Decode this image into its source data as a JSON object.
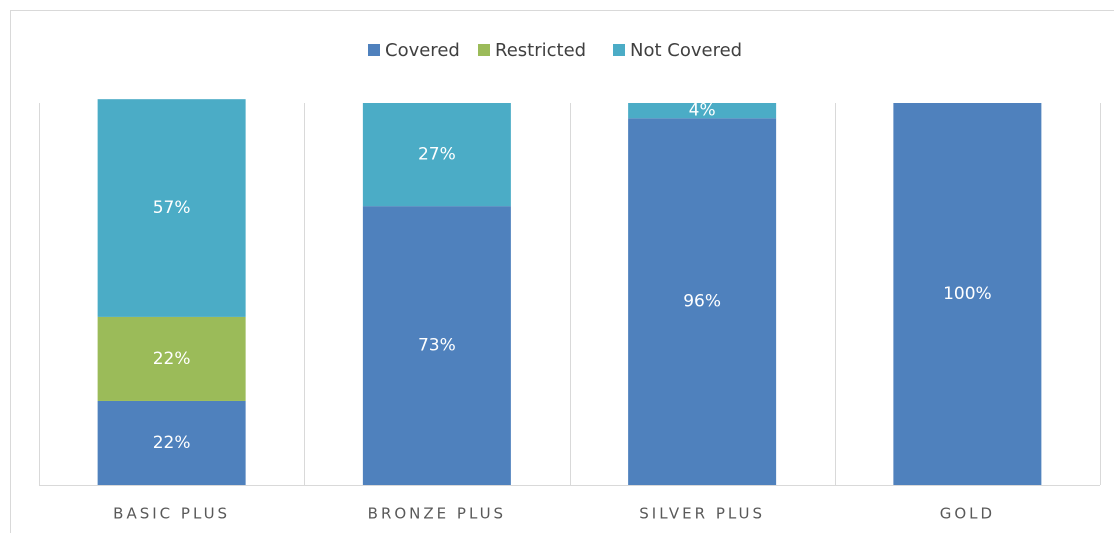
{
  "chart_data": {
    "type": "stacked_bar",
    "categories": [
      "BASIC PLUS",
      "BRONZE PLUS",
      "SILVER PLUS",
      "GOLD"
    ],
    "series": [
      {
        "name": "Covered",
        "color": "#4f81bd",
        "values": [
          22,
          73,
          96,
          100
        ],
        "value_labels": [
          "22%",
          "73%",
          "96%",
          "100%"
        ]
      },
      {
        "name": "Restricted",
        "color": "#9bbb59",
        "values": [
          22,
          0,
          0,
          0
        ],
        "value_labels": [
          "22%",
          null,
          null,
          null
        ]
      },
      {
        "name": "Not Covered",
        "color": "#4bacc6",
        "values": [
          57,
          27,
          4,
          0
        ],
        "value_labels": [
          "57%",
          "27%",
          "4%",
          null
        ]
      }
    ],
    "ylim": [
      0,
      100
    ],
    "legend": "top"
  }
}
